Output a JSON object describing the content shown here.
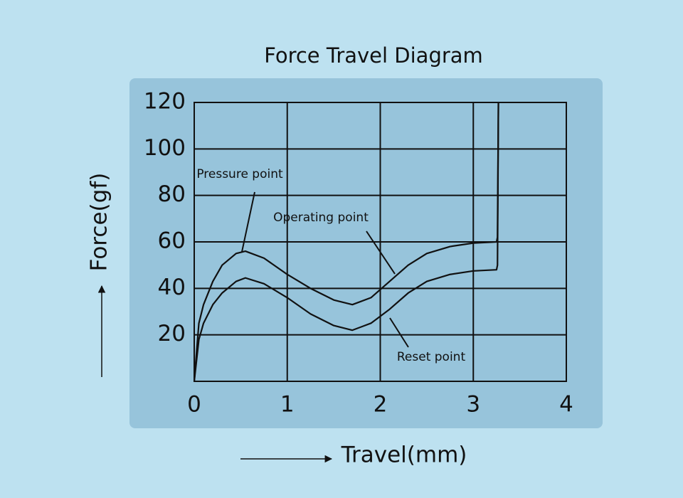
{
  "chart_data": {
    "type": "line",
    "title": "Force Travel Diagram",
    "x_label": "Travel(mm)",
    "y_label": "Force(gf)",
    "annotations": [
      "Pressure point",
      "Operating point",
      "Reset point"
    ],
    "x": [
      0,
      0.05,
      0.1,
      0.2,
      0.3,
      0.45,
      0.55,
      0.75,
      1.0,
      1.25,
      1.5,
      1.7,
      1.9,
      2.1,
      2.3,
      2.5,
      2.75,
      3.0,
      3.25,
      3.26,
      3.27
    ],
    "series": [
      {
        "color": "#111111",
        "values": [
          0,
          25,
          33,
          43,
          50,
          55,
          56,
          53,
          46,
          40,
          35,
          33,
          36,
          43,
          50,
          55,
          58,
          59.5,
          60,
          62,
          120
        ]
      },
      {
        "color": "#111111",
        "values": [
          0,
          18,
          25,
          33,
          38,
          43,
          44.5,
          42,
          36,
          29,
          24,
          22,
          25,
          31,
          38,
          43,
          46,
          47.5,
          48,
          50,
          120
        ]
      }
    ],
    "xlim": [
      0,
      4
    ],
    "xticks": [
      0,
      1,
      2,
      3,
      4
    ],
    "ylim": [
      0,
      120
    ],
    "yticks": [
      20,
      40,
      60,
      80,
      100,
      120
    ],
    "grid": true
  }
}
